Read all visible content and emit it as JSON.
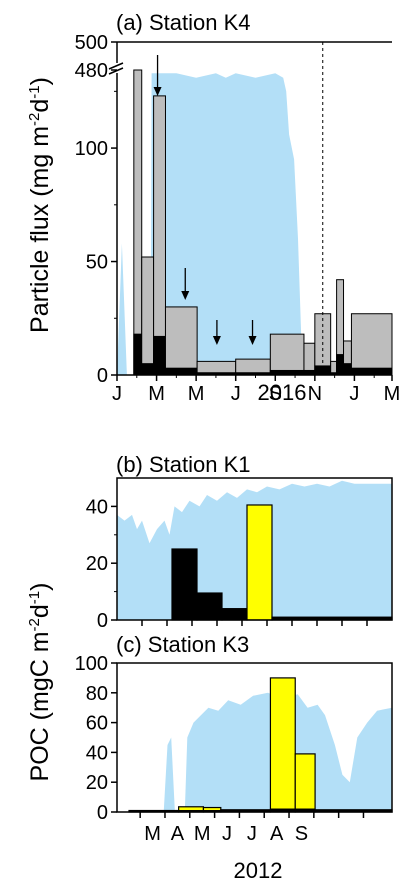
{
  "colors": {
    "ice": "#b3dff7",
    "bar_total": "#bdbdbd",
    "bar_poc": "#000000",
    "bar_yellow": "#ffff00",
    "axis": "#000000"
  },
  "left_labels": {
    "a_prefix": "Particle flux (mg m",
    "b_prefix": "POC (mgC m",
    "sup1": "-2",
    "mid": "d",
    "sup2": "-1",
    "close": ")"
  },
  "chart_data": [
    {
      "type": "bar",
      "title": "(a) Station K4",
      "xlabel": "2016",
      "ylabel": "Particle flux (mg m-2d-1)",
      "x_unit": "month index from Jan 1 2016",
      "x_range": [
        0,
        13.9
      ],
      "xticks": [
        0,
        2,
        4,
        6,
        8,
        10,
        12,
        14
      ],
      "xtick_labels": [
        "J",
        "M",
        "M",
        "J",
        "S",
        "N",
        "J",
        "M"
      ],
      "ylim": [
        0,
        140
      ],
      "yticks": [
        0,
        50,
        100
      ],
      "ytick_labels": [
        "0",
        "50",
        "100"
      ],
      "axis_break": {
        "at": 130,
        "upper_tick_labels": [
          "480",
          "500"
        ]
      },
      "bars": [
        {
          "x0": 0.85,
          "x1": 1.25,
          "total": 480,
          "poc": 18
        },
        {
          "x0": 1.25,
          "x1": 1.85,
          "total": 52,
          "poc": 5
        },
        {
          "x0": 1.85,
          "x1": 2.45,
          "total": 123,
          "poc": 17
        },
        {
          "x0": 2.45,
          "x1": 4.05,
          "total": 30,
          "poc": 3
        },
        {
          "x0": 4.05,
          "x1": 6.0,
          "total": 6,
          "poc": 1
        },
        {
          "x0": 6.0,
          "x1": 7.75,
          "total": 7,
          "poc": 1
        },
        {
          "x0": 7.75,
          "x1": 9.45,
          "total": 18,
          "poc": 2
        },
        {
          "x0": 9.45,
          "x1": 10.0,
          "total": 14,
          "poc": 2
        },
        {
          "x0": 10.0,
          "x1": 10.8,
          "total": 27,
          "poc": 4
        },
        {
          "x0": 10.8,
          "x1": 11.1,
          "total": 6,
          "poc": 1
        },
        {
          "x0": 11.1,
          "x1": 11.45,
          "total": 42,
          "poc": 9
        },
        {
          "x0": 11.45,
          "x1": 11.85,
          "total": 15,
          "poc": 5
        },
        {
          "x0": 11.85,
          "x1": 13.9,
          "total": 27,
          "poc": 3
        }
      ],
      "arrows_at": [
        2.05,
        3.45,
        5.05,
        6.85
      ],
      "vline_at": 10.4,
      "ice": [
        [
          0,
          0
        ],
        [
          0.25,
          58
        ],
        [
          0.5,
          0
        ],
        [
          1.7,
          0
        ],
        [
          1.75,
          133
        ],
        [
          2.7,
          133
        ],
        [
          3.0,
          133
        ],
        [
          4.0,
          131
        ],
        [
          5.0,
          133
        ],
        [
          5.5,
          131
        ],
        [
          6.0,
          133
        ],
        [
          7.0,
          131
        ],
        [
          8.0,
          133
        ],
        [
          8.4,
          131
        ],
        [
          8.55,
          125
        ],
        [
          8.7,
          106
        ],
        [
          8.95,
          95
        ],
        [
          9.15,
          60
        ],
        [
          9.3,
          20
        ],
        [
          9.38,
          0
        ]
      ]
    },
    {
      "type": "bar",
      "title": "(b) Station K1",
      "xlabel": "",
      "ylabel": "POC (mgC m-2d-1)",
      "x_unit": "month index",
      "x_range": [
        0,
        11
      ],
      "xticks": [
        1,
        2,
        3,
        4,
        5,
        6,
        7,
        8,
        9,
        10
      ],
      "ylim": [
        0,
        50
      ],
      "yticks": [
        0,
        20,
        40
      ],
      "ytick_labels": [
        "0",
        "20",
        "40"
      ],
      "bars": [
        {
          "x0": 2.2,
          "x1": 3.2,
          "value": 25,
          "color": "black"
        },
        {
          "x0": 3.2,
          "x1": 4.2,
          "value": 9.5,
          "color": "black"
        },
        {
          "x0": 4.2,
          "x1": 5.2,
          "value": 4,
          "color": "black"
        },
        {
          "x0": 5.2,
          "x1": 6.2,
          "value": 40.5,
          "color": "yellow"
        },
        {
          "x0": 6.2,
          "x1": 11,
          "value": 1,
          "color": "black"
        }
      ],
      "ice": [
        [
          0,
          37
        ],
        [
          0.3,
          35
        ],
        [
          0.6,
          37
        ],
        [
          0.8,
          32
        ],
        [
          1.0,
          35
        ],
        [
          1.3,
          27
        ],
        [
          1.6,
          32
        ],
        [
          1.9,
          35
        ],
        [
          2.1,
          30
        ],
        [
          2.3,
          40
        ],
        [
          2.6,
          38
        ],
        [
          2.9,
          42
        ],
        [
          3.3,
          40
        ],
        [
          3.6,
          44
        ],
        [
          4.0,
          42
        ],
        [
          4.4,
          45
        ],
        [
          4.8,
          43
        ],
        [
          5.2,
          46
        ],
        [
          5.6,
          45
        ],
        [
          6.0,
          47
        ],
        [
          6.5,
          46
        ],
        [
          7.0,
          48
        ],
        [
          7.5,
          47
        ],
        [
          8.0,
          48
        ],
        [
          8.5,
          47
        ],
        [
          9.0,
          49
        ],
        [
          9.5,
          48
        ],
        [
          10.0,
          48
        ],
        [
          11,
          48
        ],
        [
          11,
          0
        ],
        [
          0,
          0
        ]
      ]
    },
    {
      "type": "bar",
      "title": "(c) Station K3",
      "xlabel": "2012",
      "ylabel": "POC (mgC m-2d-1)",
      "x_unit": "month index",
      "x_range": [
        0,
        10.6
      ],
      "xticks": [
        0,
        1,
        2,
        3,
        4,
        5,
        6,
        7,
        8,
        9,
        10
      ],
      "xtick_labels": [
        "M",
        "A",
        "M",
        "J",
        "J",
        "A",
        "S"
      ],
      "ylim": [
        0,
        100
      ],
      "yticks": [
        0,
        20,
        40,
        60,
        80,
        100
      ],
      "ytick_labels": [
        "0",
        "20",
        "40",
        "60",
        "80",
        "100"
      ],
      "bars": [
        {
          "x0": 0.0,
          "x1": 2.0,
          "value": 1,
          "color": "black"
        },
        {
          "x0": 2.0,
          "x1": 3.0,
          "value": 3.5,
          "color": "yellow",
          "poc": 1
        },
        {
          "x0": 3.0,
          "x1": 3.7,
          "value": 3,
          "color": "yellow",
          "poc": 1
        },
        {
          "x0": 3.7,
          "x1": 5.7,
          "value": 1.5,
          "color": "black"
        },
        {
          "x0": 5.7,
          "x1": 6.7,
          "value": 90,
          "color": "yellow",
          "poc": 2
        },
        {
          "x0": 6.7,
          "x1": 7.5,
          "value": 39,
          "color": "yellow",
          "poc": 2
        },
        {
          "x0": 7.5,
          "x1": 10.6,
          "value": 1.5,
          "color": "black"
        }
      ],
      "ice": [
        [
          0,
          0
        ],
        [
          1.4,
          0
        ],
        [
          1.55,
          45
        ],
        [
          1.7,
          50
        ],
        [
          1.85,
          0
        ],
        [
          2.25,
          0
        ],
        [
          2.35,
          50
        ],
        [
          2.6,
          60
        ],
        [
          2.9,
          65
        ],
        [
          3.2,
          70
        ],
        [
          3.6,
          68
        ],
        [
          4.0,
          75
        ],
        [
          4.5,
          72
        ],
        [
          5.0,
          78
        ],
        [
          5.6,
          80
        ],
        [
          6.2,
          76
        ],
        [
          6.8,
          79
        ],
        [
          7.2,
          70
        ],
        [
          7.6,
          72
        ],
        [
          7.9,
          65
        ],
        [
          8.3,
          45
        ],
        [
          8.6,
          25
        ],
        [
          8.9,
          20
        ],
        [
          9.2,
          50
        ],
        [
          9.6,
          60
        ],
        [
          10.0,
          68
        ],
        [
          10.6,
          70
        ],
        [
          10.6,
          0
        ]
      ]
    }
  ]
}
